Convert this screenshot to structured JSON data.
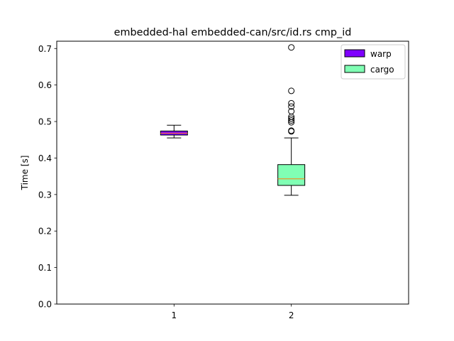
{
  "chart_data": {
    "type": "box",
    "title": "embedded-hal embedded-can/src/id.rs cmp_id",
    "xlabel": "",
    "ylabel": "Time [s]",
    "ylim": [
      0.0,
      0.72
    ],
    "yticks": [
      "0.0",
      "0.1",
      "0.2",
      "0.3",
      "0.4",
      "0.5",
      "0.6",
      "0.7"
    ],
    "categories": [
      "1",
      "2"
    ],
    "legend_position": "top-right",
    "series": [
      {
        "name": "warp",
        "color": "#7f00ff",
        "median_color": "#ff7f0e",
        "category": "1",
        "whisker_low": 0.455,
        "q1": 0.463,
        "median": 0.468,
        "q3": 0.474,
        "whisker_high": 0.49,
        "outliers": []
      },
      {
        "name": "cargo",
        "color": "#80ffb4",
        "median_color": "#ff7f0e",
        "category": "2",
        "whisker_low": 0.298,
        "q1": 0.325,
        "median": 0.343,
        "q3": 0.382,
        "whisker_high": 0.455,
        "outliers": [
          0.703,
          0.584,
          0.55,
          0.541,
          0.528,
          0.513,
          0.508,
          0.503,
          0.498,
          0.475,
          0.473
        ]
      }
    ]
  }
}
